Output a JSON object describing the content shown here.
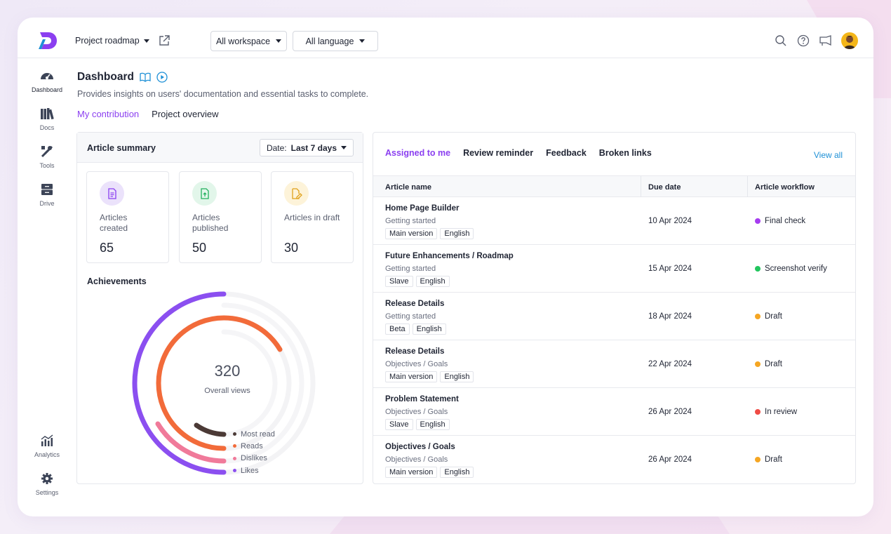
{
  "header": {
    "project": "Project roadmap",
    "workspace": "All workspace",
    "language": "All language"
  },
  "sidebar": {
    "items": [
      {
        "label": "Dashboard",
        "icon": "dashboard-icon"
      },
      {
        "label": "Docs",
        "icon": "docs-icon"
      },
      {
        "label": "Tools",
        "icon": "tools-icon"
      },
      {
        "label": "Drive",
        "icon": "drive-icon"
      },
      {
        "label": "Analytics",
        "icon": "analytics-icon"
      },
      {
        "label": "Settings",
        "icon": "settings-icon"
      }
    ]
  },
  "page": {
    "title": "Dashboard",
    "subtitle": "Provides insights on users' documentation and essential tasks to complete.",
    "tabs": [
      "My contribution",
      "Project overview"
    ]
  },
  "summary": {
    "title": "Article summary",
    "date_prefix": "Date:",
    "date_value": "Last 7 days",
    "stats": [
      {
        "label": "Articles created",
        "value": "65",
        "color": "#ebe2fb"
      },
      {
        "label": "Articles published",
        "value": "50",
        "color": "#e2f6ea"
      },
      {
        "label": "Articles in draft",
        "value": "30",
        "color": "#fdf3d9"
      }
    ]
  },
  "achievements": {
    "title": "Achievements",
    "total": "320",
    "total_label": "Overall views",
    "legend": [
      {
        "name": "Most read",
        "color": "#4b3a36"
      },
      {
        "name": "Reads",
        "color": "#f26b3a"
      },
      {
        "name": "Dislikes",
        "color": "#f07a9a"
      },
      {
        "name": "Likes",
        "color": "#8b4ff0"
      }
    ]
  },
  "tasks": {
    "tabs": [
      "Assigned to me",
      "Review reminder",
      "Feedback",
      "Broken links"
    ],
    "view_all": "View all",
    "columns": [
      "Article name",
      "Due date",
      "Article workflow"
    ],
    "rows": [
      {
        "name": "Home Page Builder",
        "category": "Getting started",
        "tags": [
          "Main version",
          "English"
        ],
        "due": "10 Apr 2024",
        "workflow": "Final check",
        "color": "#a63cf0"
      },
      {
        "name": "Future Enhancements / Roadmap",
        "category": "Getting started",
        "tags": [
          "Slave",
          "English"
        ],
        "due": "15 Apr 2024",
        "workflow": "Screenshot verify",
        "color": "#22c55e"
      },
      {
        "name": "Release Details",
        "category": "Getting started",
        "tags": [
          "Beta",
          "English"
        ],
        "due": "18 Apr 2024",
        "workflow": "Draft",
        "color": "#f5a623"
      },
      {
        "name": "Release Details",
        "category": "Objectives / Goals",
        "tags": [
          "Main version",
          "English"
        ],
        "due": "22 Apr 2024",
        "workflow": "Draft",
        "color": "#f5a623"
      },
      {
        "name": "Problem Statement",
        "category": "Objectives / Goals",
        "tags": [
          "Slave",
          "English"
        ],
        "due": "26 Apr 2024",
        "workflow": "In review",
        "color": "#ef4b45"
      },
      {
        "name": "Objectives / Goals",
        "category": "Objectives / Goals",
        "tags": [
          "Main version",
          "English"
        ],
        "due": "26 Apr 2024",
        "workflow": "Draft",
        "color": "#f5a623"
      }
    ]
  }
}
